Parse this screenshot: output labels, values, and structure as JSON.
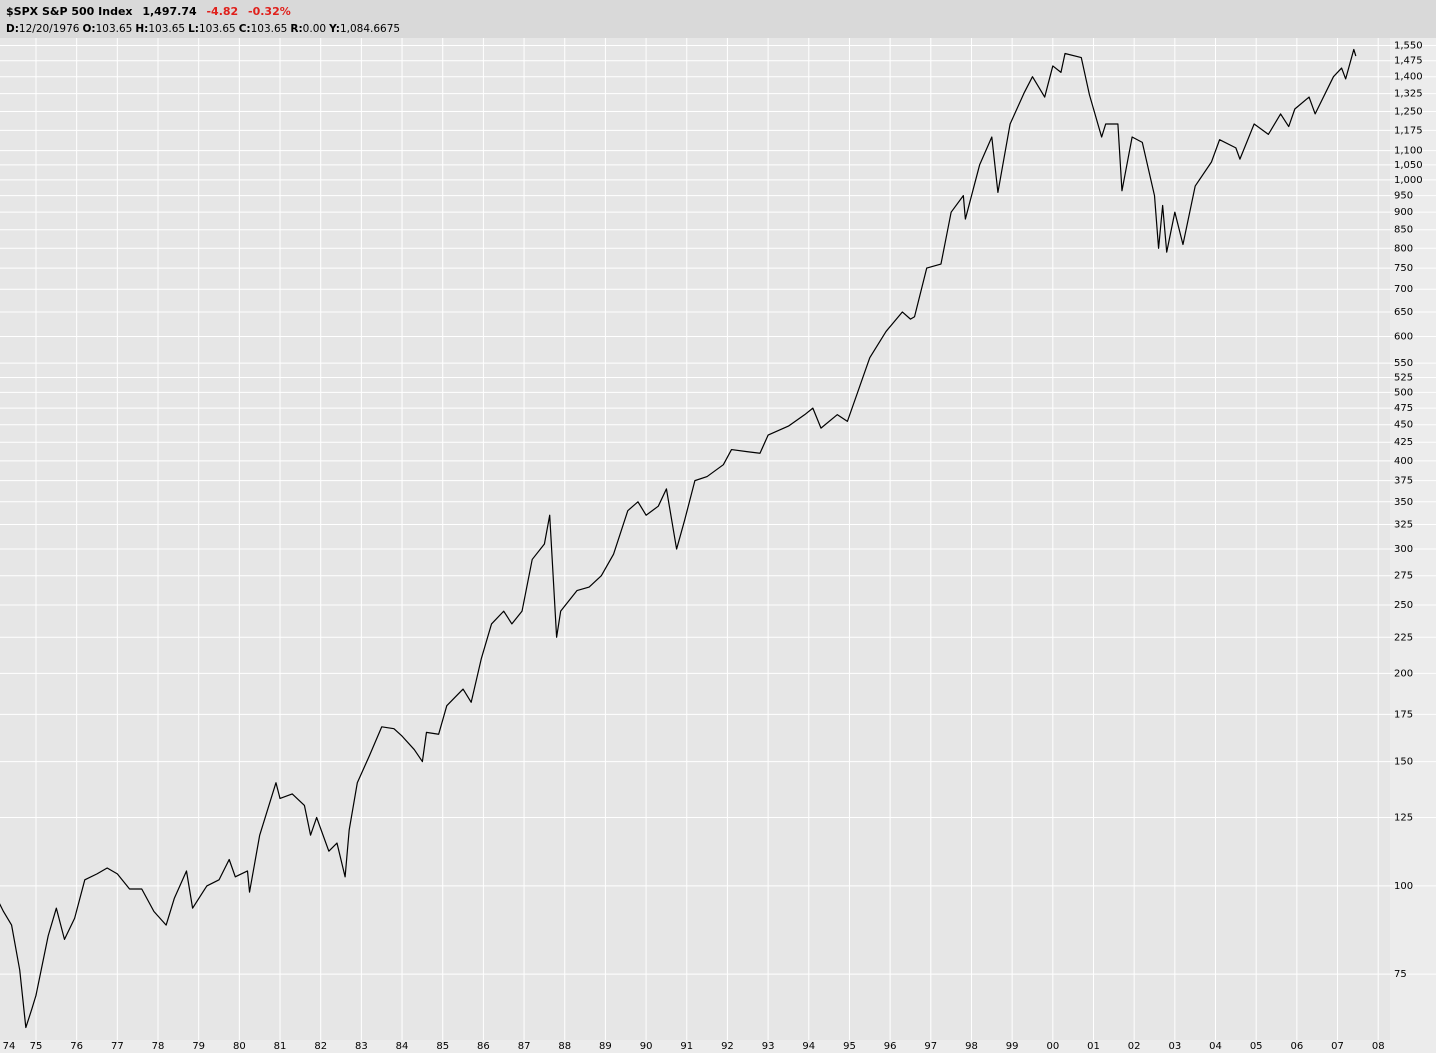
{
  "header": {
    "symbol": "$SPX S&P 500 Index",
    "last": "1,497.74",
    "change": "-4.82",
    "change_pct": "-0.32%",
    "ohlc": [
      {
        "key": "D:",
        "value": "12/20/1976"
      },
      {
        "key": "O:",
        "value": "103.65"
      },
      {
        "key": "H:",
        "value": "103.65"
      },
      {
        "key": "L:",
        "value": "103.65"
      },
      {
        "key": "C:",
        "value": "103.65"
      },
      {
        "key": "R:",
        "value": "0.00"
      },
      {
        "key": "Y:",
        "value": "1,084.6675"
      }
    ]
  },
  "chart_data": {
    "type": "line",
    "log_scale": true,
    "grid": true,
    "color": "#000000",
    "x": [
      1974.0,
      1974.2,
      1974.4,
      1974.6,
      1974.75,
      1974.9,
      1975.0,
      1975.3,
      1975.5,
      1975.7,
      1975.95,
      1976.2,
      1976.5,
      1976.75,
      1977.0,
      1977.3,
      1977.6,
      1977.9,
      1978.2,
      1978.4,
      1978.7,
      1978.85,
      1979.2,
      1979.5,
      1979.75,
      1979.9,
      1980.2,
      1980.25,
      1980.5,
      1980.9,
      1981.0,
      1981.3,
      1981.6,
      1981.75,
      1981.9,
      1982.2,
      1982.4,
      1982.6,
      1982.7,
      1982.9,
      1983.2,
      1983.5,
      1983.8,
      1984.0,
      1984.3,
      1984.5,
      1984.6,
      1984.9,
      1985.1,
      1985.5,
      1985.7,
      1985.95,
      1986.2,
      1986.5,
      1986.7,
      1986.95,
      1987.2,
      1987.5,
      1987.63,
      1987.8,
      1987.9,
      1988.3,
      1988.6,
      1988.9,
      1989.2,
      1989.55,
      1989.8,
      1990.0,
      1990.3,
      1990.5,
      1990.75,
      1990.95,
      1991.2,
      1991.5,
      1991.9,
      1992.1,
      1992.5,
      1992.8,
      1993.0,
      1993.5,
      1993.9,
      1994.1,
      1994.3,
      1994.7,
      1994.95,
      1995.2,
      1995.5,
      1995.9,
      1996.3,
      1996.5,
      1996.6,
      1996.9,
      1997.25,
      1997.5,
      1997.8,
      1997.85,
      1998.2,
      1998.5,
      1998.65,
      1998.95,
      1999.3,
      1999.5,
      1999.8,
      2000.0,
      2000.2,
      2000.3,
      2000.7,
      2000.9,
      2001.2,
      2001.3,
      2001.6,
      2001.7,
      2001.95,
      2002.2,
      2002.5,
      2002.6,
      2002.7,
      2002.8,
      2003.0,
      2003.2,
      2003.5,
      2003.9,
      2004.1,
      2004.5,
      2004.6,
      2004.95,
      2005.3,
      2005.6,
      2005.8,
      2005.95,
      2006.3,
      2006.45,
      2006.9,
      2007.1,
      2007.2,
      2007.4,
      2007.45
    ],
    "values": [
      97,
      92,
      88,
      76,
      63,
      67,
      70,
      85,
      93,
      84,
      90,
      102,
      104,
      106,
      104,
      99,
      99,
      92,
      88,
      96,
      105,
      93,
      100,
      102,
      109,
      103,
      105,
      98,
      118,
      140,
      133,
      135,
      130,
      118,
      125,
      112,
      115,
      103,
      120,
      140,
      153,
      168,
      167,
      163,
      156,
      150,
      165,
      164,
      180,
      190,
      182,
      210,
      235,
      245,
      235,
      245,
      290,
      305,
      335,
      225,
      245,
      262,
      265,
      275,
      295,
      340,
      350,
      335,
      345,
      365,
      300,
      330,
      375,
      380,
      395,
      415,
      412,
      410,
      435,
      448,
      465,
      475,
      445,
      465,
      455,
      500,
      560,
      610,
      650,
      635,
      640,
      750,
      760,
      900,
      950,
      880,
      1050,
      1150,
      960,
      1200,
      1330,
      1400,
      1310,
      1450,
      1420,
      1510,
      1490,
      1320,
      1150,
      1200,
      1200,
      965,
      1150,
      1130,
      950,
      800,
      920,
      790,
      900,
      810,
      980,
      1060,
      1140,
      1110,
      1070,
      1200,
      1160,
      1240,
      1190,
      1260,
      1310,
      1240,
      1400,
      1440,
      1390,
      1530,
      1497.74
    ],
    "xlim": [
      1974.115,
      2008.29
    ],
    "xticks": [
      {
        "value": 1974,
        "label": "74"
      },
      {
        "value": 1975,
        "label": "75"
      },
      {
        "value": 1976,
        "label": "76"
      },
      {
        "value": 1977,
        "label": "77"
      },
      {
        "value": 1978,
        "label": "78"
      },
      {
        "value": 1979,
        "label": "79"
      },
      {
        "value": 1980,
        "label": "80"
      },
      {
        "value": 1981,
        "label": "81"
      },
      {
        "value": 1982,
        "label": "82"
      },
      {
        "value": 1983,
        "label": "83"
      },
      {
        "value": 1984,
        "label": "84"
      },
      {
        "value": 1985,
        "label": "85"
      },
      {
        "value": 1986,
        "label": "86"
      },
      {
        "value": 1987,
        "label": "87"
      },
      {
        "value": 1988,
        "label": "88"
      },
      {
        "value": 1989,
        "label": "89"
      },
      {
        "value": 1990,
        "label": "90"
      },
      {
        "value": 1991,
        "label": "91"
      },
      {
        "value": 1992,
        "label": "92"
      },
      {
        "value": 1993,
        "label": "93"
      },
      {
        "value": 1994,
        "label": "94"
      },
      {
        "value": 1995,
        "label": "95"
      },
      {
        "value": 1996,
        "label": "96"
      },
      {
        "value": 1997,
        "label": "97"
      },
      {
        "value": 1998,
        "label": "98"
      },
      {
        "value": 1999,
        "label": "99"
      },
      {
        "value": 2000,
        "label": "00"
      },
      {
        "value": 2001,
        "label": "01"
      },
      {
        "value": 2002,
        "label": "02"
      },
      {
        "value": 2003,
        "label": "03"
      },
      {
        "value": 2004,
        "label": "04"
      },
      {
        "value": 2005,
        "label": "05"
      },
      {
        "value": 2006,
        "label": "06"
      },
      {
        "value": 2007,
        "label": "07"
      },
      {
        "value": 2008,
        "label": "08"
      }
    ],
    "ylim": [
      60.5,
      1578
    ],
    "yticks": [
      75,
      100,
      125,
      150,
      175,
      200,
      225,
      250,
      275,
      300,
      325,
      350,
      375,
      400,
      425,
      450,
      475,
      500,
      525,
      550,
      600,
      650,
      700,
      750,
      800,
      850,
      900,
      950,
      {
        "value": 1000,
        "label": "1,000"
      },
      {
        "value": 1050,
        "label": "1,050"
      },
      {
        "value": 1100,
        "label": "1,100"
      },
      {
        "value": 1175,
        "label": "1,175"
      },
      {
        "value": 1250,
        "label": "1,250"
      },
      {
        "value": 1325,
        "label": "1,325"
      },
      {
        "value": 1400,
        "label": "1,400"
      },
      {
        "value": 1475,
        "label": "1,475"
      },
      {
        "value": 1550,
        "label": "1,550"
      }
    ]
  }
}
